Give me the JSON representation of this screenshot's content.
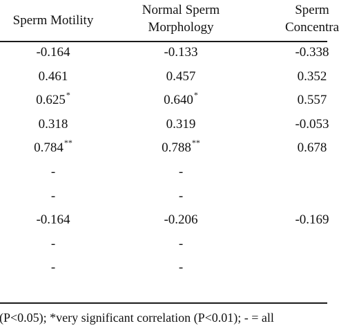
{
  "headers": [
    {
      "lines": [
        "Sperm Motility"
      ]
    },
    {
      "lines": [
        "Normal Sperm",
        "Morphology"
      ]
    },
    {
      "lines": [
        "Sperm",
        "Concentra"
      ]
    }
  ],
  "rows": [
    [
      {
        "v": "-0.164",
        "s": ""
      },
      {
        "v": "-0.133",
        "s": ""
      },
      {
        "v": "-0.338",
        "s": ""
      }
    ],
    [
      {
        "v": "0.461",
        "s": ""
      },
      {
        "v": "0.457",
        "s": ""
      },
      {
        "v": "0.352",
        "s": ""
      }
    ],
    [
      {
        "v": "0.625",
        "s": "*"
      },
      {
        "v": "0.640",
        "s": "*"
      },
      {
        "v": "0.557",
        "s": ""
      }
    ],
    [
      {
        "v": "0.318",
        "s": ""
      },
      {
        "v": "0.319",
        "s": ""
      },
      {
        "v": "-0.053",
        "s": ""
      }
    ],
    [
      {
        "v": "0.784",
        "s": "**"
      },
      {
        "v": "0.788",
        "s": "**"
      },
      {
        "v": "0.678",
        "s": ""
      }
    ],
    [
      {
        "v": "-",
        "s": ""
      },
      {
        "v": "-",
        "s": ""
      },
      {
        "v": "",
        "s": ""
      }
    ],
    [
      {
        "v": "-",
        "s": ""
      },
      {
        "v": "-",
        "s": ""
      },
      {
        "v": "",
        "s": ""
      }
    ],
    [
      {
        "v": "-0.164",
        "s": ""
      },
      {
        "v": "-0.206",
        "s": ""
      },
      {
        "v": "-0.169",
        "s": ""
      }
    ],
    [
      {
        "v": "-",
        "s": ""
      },
      {
        "v": "-",
        "s": ""
      },
      {
        "v": "",
        "s": ""
      }
    ],
    [
      {
        "v": "-",
        "s": ""
      },
      {
        "v": "-",
        "s": ""
      },
      {
        "v": "",
        "s": ""
      }
    ]
  ],
  "footnote": "(P<0.05); *very significant correlation (P<0.01); - = all"
}
